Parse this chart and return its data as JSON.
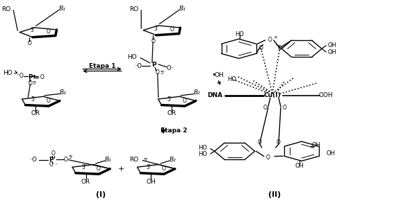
{
  "label_I": "(I)",
  "label_II": "(II)",
  "label_etapa1": "Etapa 1",
  "label_etapa2": "Etapa 2",
  "bg_color": "#ffffff",
  "fig_width": 6.03,
  "fig_height": 2.93,
  "dpi": 100
}
